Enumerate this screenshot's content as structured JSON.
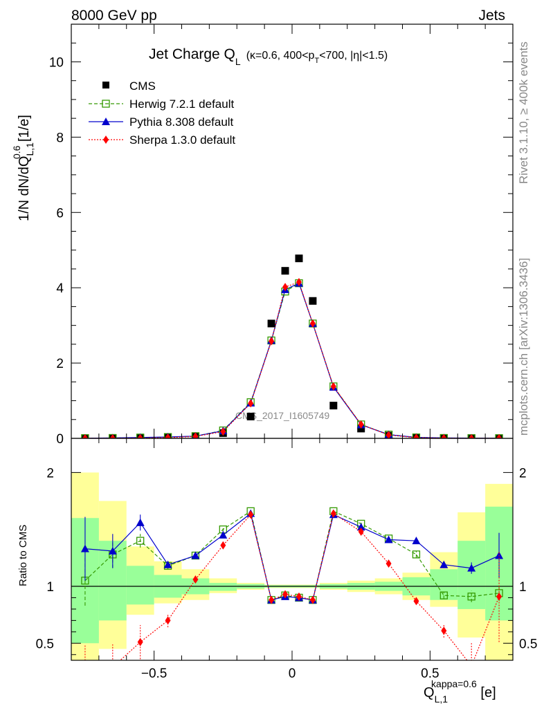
{
  "header": {
    "energy": "8000 GeV pp",
    "observable": "Jets"
  },
  "side_labels": {
    "rivet": "Rivet 3.1.10, ≥ 400k events",
    "site": "mcplots.cern.ch [arXiv:1306.3436]"
  },
  "watermark": "CMS_2017_I1605749",
  "chart_data": [
    {
      "type": "scatter",
      "title": "Jet Charge Q",
      "title_sub": "L",
      "title_cond": "(κ=0.6, 400<p",
      "title_cond_sub": "T",
      "title_cond_end": "<700, |η|<1.5)",
      "ylabel": "1/N dN/dQ",
      "ylabel_sup": "0.6",
      "ylabel_sub": "L,1",
      "ylabel_unit": " [1/e]",
      "ylim": [
        0,
        11
      ],
      "xlim": [
        -0.8,
        0.8
      ],
      "yticks": [
        "0",
        "2",
        "4",
        "6",
        "8",
        "10"
      ],
      "x": [
        -0.75,
        -0.65,
        -0.55,
        -0.45,
        -0.35,
        -0.25,
        -0.15,
        -0.075,
        -0.025,
        0.025,
        0.075,
        0.15,
        0.25,
        0.35,
        0.45,
        0.55,
        0.65,
        0.75
      ],
      "series": [
        {
          "name": "CMS",
          "color": "#000000",
          "style": "data",
          "values": [
            0.005,
            0.008,
            0.015,
            0.03,
            0.045,
            0.14,
            0.58,
            3.05,
            4.45,
            4.78,
            3.65,
            0.87,
            0.26,
            0.07,
            0.02,
            0.01,
            0.006,
            0.004
          ]
        },
        {
          "name": "Herwig 7.2.1 default",
          "color": "#339900",
          "style": "herwig",
          "values": [
            0.005,
            0.01,
            0.021,
            0.035,
            0.058,
            0.21,
            0.96,
            2.6,
            3.9,
            4.12,
            3.05,
            1.38,
            0.37,
            0.1,
            0.025,
            0.009,
            0.005,
            0.004
          ]
        },
        {
          "name": "Pythia 8.308 default",
          "color": "#0000cc",
          "style": "pythia",
          "values": [
            0.006,
            0.011,
            0.023,
            0.036,
            0.058,
            0.2,
            0.94,
            2.6,
            3.95,
            4.12,
            3.05,
            1.36,
            0.36,
            0.1,
            0.026,
            0.012,
            0.007,
            0.005
          ]
        },
        {
          "name": "Sherpa 1.3.0 default",
          "color": "#ff0000",
          "style": "sherpa",
          "values": [
            0.002,
            0.003,
            0.008,
            0.021,
            0.049,
            0.18,
            0.93,
            2.58,
            4.02,
            4.15,
            3.05,
            1.38,
            0.37,
            0.088,
            0.018,
            0.006,
            0.002,
            0.004
          ]
        }
      ]
    },
    {
      "type": "scatter",
      "ylabel": "Ratio to CMS",
      "xlabel": "Q",
      "xlabel_sup": "kappa=0.6",
      "xlabel_sub": "L,1",
      "xlabel_unit": " [e]",
      "ylim": [
        0.35,
        2.3
      ],
      "yticks": [
        "0.5",
        "1",
        "2"
      ],
      "xticks": [
        "−0.5",
        "0",
        "0.5"
      ],
      "reference": 1,
      "bands": {
        "edges": [
          -0.8,
          -0.7,
          -0.6,
          -0.5,
          -0.4,
          -0.3,
          -0.2,
          -0.1,
          0,
          0.1,
          0.2,
          0.3,
          0.4,
          0.5,
          0.6,
          0.7,
          0.8
        ],
        "inner_color": "#99ff99",
        "outer_color": "#ffff99",
        "inner": [
          [
            0.5,
            1.6
          ],
          [
            0.7,
            1.4
          ],
          [
            0.84,
            1.18
          ],
          [
            0.9,
            1.1
          ],
          [
            0.93,
            1.07
          ],
          [
            0.96,
            1.03
          ],
          [
            0.98,
            1.02
          ],
          [
            0.99,
            1.01
          ],
          [
            0.99,
            1.01
          ],
          [
            0.98,
            1.02
          ],
          [
            0.97,
            1.03
          ],
          [
            0.96,
            1.04
          ],
          [
            0.92,
            1.08
          ],
          [
            0.88,
            1.15
          ],
          [
            0.8,
            1.4
          ],
          [
            0.7,
            1.7
          ]
        ],
        "outer": [
          [
            0.3,
            2.0
          ],
          [
            0.45,
            1.75
          ],
          [
            0.75,
            1.35
          ],
          [
            0.85,
            1.22
          ],
          [
            0.88,
            1.15
          ],
          [
            0.94,
            1.07
          ],
          [
            0.97,
            1.03
          ],
          [
            0.985,
            1.015
          ],
          [
            0.985,
            1.015
          ],
          [
            0.97,
            1.03
          ],
          [
            0.95,
            1.05
          ],
          [
            0.93,
            1.07
          ],
          [
            0.88,
            1.12
          ],
          [
            0.82,
            1.3
          ],
          [
            0.55,
            1.65
          ],
          [
            0.35,
            1.9
          ]
        ]
      },
      "series": [
        {
          "name": "Herwig 7.2.1 default",
          "color": "#339900",
          "style": "herwig",
          "values": [
            1.05,
            1.28,
            1.4,
            1.18,
            1.27,
            1.5,
            1.66,
            0.88,
            0.92,
            0.9,
            0.88,
            1.66,
            1.55,
            1.42,
            1.28,
            0.92,
            0.91,
            0.94
          ],
          "errors": [
            0.22,
            0.12,
            0.06,
            0.03,
            0.02,
            0.02,
            0.01,
            0.01,
            0.01,
            0.01,
            0.01,
            0.01,
            0.02,
            0.02,
            0.03,
            0.03,
            0.05,
            0.07
          ]
        },
        {
          "name": "Pythia 8.308 default",
          "color": "#0000cc",
          "style": "pythia",
          "values": [
            1.33,
            1.31,
            1.56,
            1.19,
            1.27,
            1.45,
            1.64,
            0.88,
            0.91,
            0.9,
            0.88,
            1.63,
            1.52,
            1.41,
            1.4,
            1.19,
            1.16,
            1.27
          ],
          "errors": [
            0.28,
            0.15,
            0.07,
            0.03,
            0.02,
            0.02,
            0.01,
            0.01,
            0.01,
            0.01,
            0.01,
            0.01,
            0.02,
            0.02,
            0.02,
            0.03,
            0.05,
            0.2
          ]
        },
        {
          "name": "Sherpa 1.3.0 default",
          "color": "#ff0000",
          "style": "sherpa",
          "values": [
            0.28,
            0.29,
            0.51,
            0.7,
            1.06,
            1.36,
            1.63,
            0.88,
            0.93,
            0.91,
            0.88,
            1.64,
            1.48,
            1.2,
            0.87,
            0.61,
            0.3,
            0.91
          ],
          "errors": [
            0.2,
            0.2,
            0.15,
            0.06,
            0.03,
            0.02,
            0.01,
            0.01,
            0.01,
            0.01,
            0.01,
            0.01,
            0.02,
            0.02,
            0.03,
            0.06,
            0.2,
            0.4
          ]
        }
      ]
    }
  ]
}
